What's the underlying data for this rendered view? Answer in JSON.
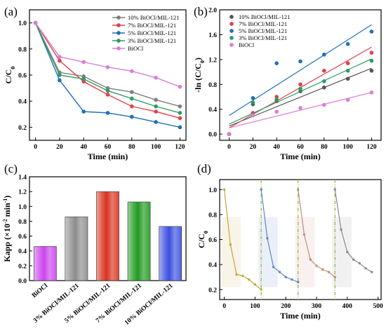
{
  "figure": {
    "background": "#ffffff"
  },
  "chart_data": [
    {
      "panel": "(a)",
      "type": "line",
      "xlabel": "Time (min)",
      "ylabel": "C/C",
      "ylabel_sub": "0",
      "xlim": [
        -5,
        125
      ],
      "ylim": [
        0.1,
        1.1
      ],
      "xticks": [
        "0",
        "20",
        "40",
        "60",
        "80",
        "100",
        "120"
      ],
      "xtick_values": [
        0,
        20,
        40,
        60,
        80,
        100,
        120
      ],
      "yticks": [
        "0.2",
        "0.4",
        "0.6",
        "0.8",
        "1.0"
      ],
      "ytick_values": [
        0.2,
        0.4,
        0.6,
        0.8,
        1.0
      ],
      "x": [
        0,
        20,
        40,
        60,
        80,
        100,
        120
      ],
      "legend_position": "top-right",
      "series": [
        {
          "name": "10% BiOCl/MIL-121",
          "color": "#7f7f7f",
          "values": [
            1.0,
            0.62,
            0.59,
            0.5,
            0.47,
            0.41,
            0.36
          ]
        },
        {
          "name": "7% BiOCl/MIL-121",
          "color": "#e0414b",
          "values": [
            1.0,
            0.71,
            0.55,
            0.45,
            0.36,
            0.32,
            0.27
          ]
        },
        {
          "name": "5% BiOCl/MIL-121",
          "color": "#1f6fb8",
          "values": [
            1.0,
            0.56,
            0.32,
            0.31,
            0.28,
            0.24,
            0.2
          ]
        },
        {
          "name": "3% BiOCl/MIL-121",
          "color": "#2e9b62",
          "values": [
            1.0,
            0.6,
            0.57,
            0.48,
            0.42,
            0.36,
            0.31
          ]
        },
        {
          "name": "BiOCl",
          "color": "#d77fd6",
          "values": [
            1.0,
            0.74,
            0.7,
            0.66,
            0.63,
            0.58,
            0.51
          ]
        }
      ]
    },
    {
      "panel": "(b)",
      "type": "scatter",
      "xlabel": "Time (min)",
      "ylabel": "-ln (C/C",
      "ylabel_sub": "0",
      "ylabel_tail": ")",
      "xlim": [
        -8,
        128
      ],
      "ylim": [
        -0.1,
        2.0
      ],
      "xticks": [
        "0",
        "20",
        "40",
        "60",
        "80",
        "100",
        "120"
      ],
      "xtick_values": [
        0,
        20,
        40,
        60,
        80,
        100,
        120
      ],
      "yticks": [
        "0.0",
        "0.4",
        "0.8",
        "1.2",
        "1.6",
        "2.0"
      ],
      "ytick_values": [
        0.0,
        0.4,
        0.8,
        1.2,
        1.6,
        2.0
      ],
      "x": [
        0,
        20,
        40,
        60,
        80,
        100,
        120
      ],
      "legend_position": "top-left",
      "series": [
        {
          "name": "10% BiOCl/MIL-121",
          "color": "#555555",
          "values": [
            0.0,
            0.48,
            0.53,
            0.69,
            0.75,
            0.89,
            1.02
          ],
          "fit": [
            0.13,
            1.06
          ]
        },
        {
          "name": "7% BiOCl/MIL-121",
          "color": "#e0414b",
          "values": [
            0.0,
            0.34,
            0.6,
            0.8,
            1.02,
            1.14,
            1.31
          ],
          "fit": [
            0.1,
            1.4
          ]
        },
        {
          "name": "5% BiOCl/MIL-121",
          "color": "#1f6fb8",
          "values": [
            0.0,
            0.58,
            1.14,
            1.17,
            1.28,
            1.45,
            1.65
          ],
          "fit": [
            0.3,
            1.76
          ]
        },
        {
          "name": "3% BiOCl/MIL-121",
          "color": "#2e9b62",
          "values": [
            0.0,
            0.51,
            0.56,
            0.73,
            0.85,
            1.02,
            1.18
          ],
          "fit": [
            0.16,
            1.21
          ]
        },
        {
          "name": "BiOCl",
          "color": "#d77fd6",
          "values": [
            0.0,
            0.3,
            0.36,
            0.42,
            0.47,
            0.55,
            0.67
          ],
          "fit": [
            0.1,
            0.67
          ]
        }
      ]
    },
    {
      "panel": "(c)",
      "type": "bar",
      "ylabel": "Kapp (×10",
      "ylabel_sup": "-2",
      "ylabel_tail": " min",
      "ylabel_sup2": "-1",
      "ylabel_end": ")",
      "ylim": [
        0.0,
        1.4
      ],
      "yticks": [
        "0.0",
        "0.2",
        "0.4",
        "0.6",
        "0.8",
        "1.0",
        "1.2",
        "1.4"
      ],
      "ytick_values": [
        0.0,
        0.2,
        0.4,
        0.6,
        0.8,
        1.0,
        1.2,
        1.4
      ],
      "categories": [
        "BiOCl",
        "3% BiOCl/MIL-121",
        "5% BiOCl/MIL-121",
        "7% BiOCl/MIL-121",
        "10% BiOCl/MIL-121"
      ],
      "values": [
        0.46,
        0.86,
        1.2,
        1.06,
        0.73
      ],
      "colors": [
        "#cc44ee",
        "#8c8c8c",
        "#d8321e",
        "#1f9a1f",
        "#3a4fe0"
      ]
    },
    {
      "panel": "(d)",
      "type": "line",
      "xlabel": "Time (min)",
      "ylabel": "C/C",
      "ylabel_sub": "0",
      "xlim": [
        -15,
        510
      ],
      "ylim": [
        0.12,
        1.08
      ],
      "xticks": [
        "0",
        "100",
        "200",
        "300",
        "400",
        "500"
      ],
      "xtick_values": [
        0,
        100,
        200,
        300,
        400,
        500
      ],
      "yticks": [
        "0.2",
        "0.4",
        "0.6",
        "0.8",
        "1.0"
      ],
      "ytick_values": [
        0.2,
        0.4,
        0.6,
        0.8,
        1.0
      ],
      "cycle_dividers": [
        120,
        240,
        360
      ],
      "divider_color": "#8db33a",
      "series": [
        {
          "color": "#c9a437",
          "x": [
            0,
            20,
            40,
            60,
            80,
            100,
            120
          ],
          "values": [
            1.0,
            0.56,
            0.32,
            0.31,
            0.28,
            0.24,
            0.2
          ]
        },
        {
          "color": "#5a87c6",
          "x": [
            120,
            140,
            160,
            180,
            200,
            220,
            240
          ],
          "values": [
            1.0,
            0.61,
            0.38,
            0.34,
            0.3,
            0.28,
            0.26
          ]
        },
        {
          "color": "#c28d7a",
          "x": [
            240,
            260,
            280,
            300,
            320,
            340,
            360
          ],
          "values": [
            1.0,
            0.64,
            0.44,
            0.39,
            0.36,
            0.34,
            0.3
          ]
        },
        {
          "color": "#8a8a8a",
          "x": [
            360,
            380,
            400,
            420,
            440,
            460,
            480
          ],
          "values": [
            1.0,
            0.68,
            0.5,
            0.44,
            0.41,
            0.37,
            0.34
          ]
        }
      ]
    }
  ]
}
